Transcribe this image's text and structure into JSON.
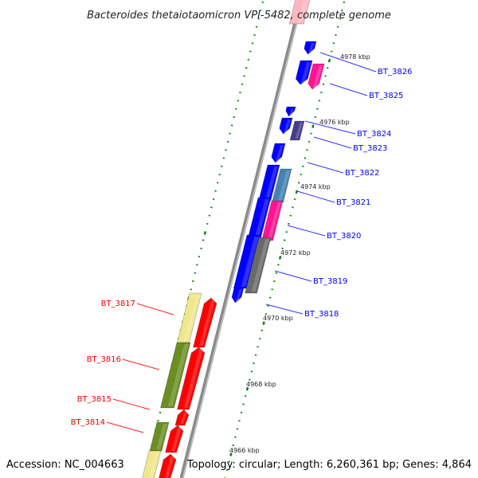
{
  "title": "Bacteroides thetaiotaomicron VPI-5482, complete genome",
  "footer": {
    "accession": "Accession: NC_004663",
    "stats": "Topology: circular; Length: 6,260,361 bp; Genes: 4,864"
  },
  "scale_labels": [
    "4978 kbp",
    "4976 kbp",
    "4974 kbp",
    "4972 kbp",
    "4970 kbp",
    "4968 kbp",
    "4966 kbp"
  ],
  "genes_right": [
    {
      "id": "BT_3826",
      "color": "#0000ee"
    },
    {
      "id": "BT_3825",
      "color": "#0000ee"
    },
    {
      "id": "BT_3824",
      "color": "#0000ee"
    },
    {
      "id": "BT_3823",
      "color": "#0000ee"
    },
    {
      "id": "BT_3822",
      "color": "#0000ee"
    },
    {
      "id": "BT_3821",
      "color": "#0000ee"
    },
    {
      "id": "BT_3820",
      "color": "#0000ee"
    },
    {
      "id": "BT_3819",
      "color": "#0000ee"
    },
    {
      "id": "BT_3818",
      "color": "#0000ee"
    }
  ],
  "genes_left": [
    {
      "id": "BT_3817",
      "color": "#ee0000"
    },
    {
      "id": "BT_3816",
      "color": "#ee0000"
    },
    {
      "id": "BT_3815",
      "color": "#ee0000"
    },
    {
      "id": "BT_3814",
      "color": "#ee0000"
    }
  ],
  "colors": {
    "forward_strand": "#0000ff",
    "reverse_strand": "#ff0000",
    "backbone": "#808080",
    "tick": "#008000",
    "pink": "#ff1493",
    "slate": "#4682b4",
    "dark_slate": "#483d8b",
    "gray": "#696969",
    "khaki": "#f0e68c",
    "olive": "#6b8e23"
  }
}
